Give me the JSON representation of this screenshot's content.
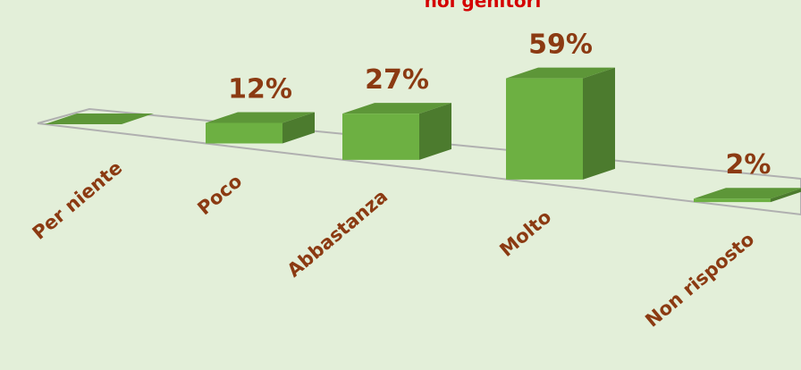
{
  "chart_data": {
    "type": "bar3d",
    "title": "noi genitori",
    "categories": [
      "Per niente",
      "Poco",
      "Abbastanza",
      "Molto",
      "Non risposto"
    ],
    "values": [
      0,
      12,
      27,
      59,
      2
    ],
    "value_labels": [
      null,
      "12%",
      "27%",
      "59%",
      "2%"
    ],
    "color": "#6db042"
  }
}
